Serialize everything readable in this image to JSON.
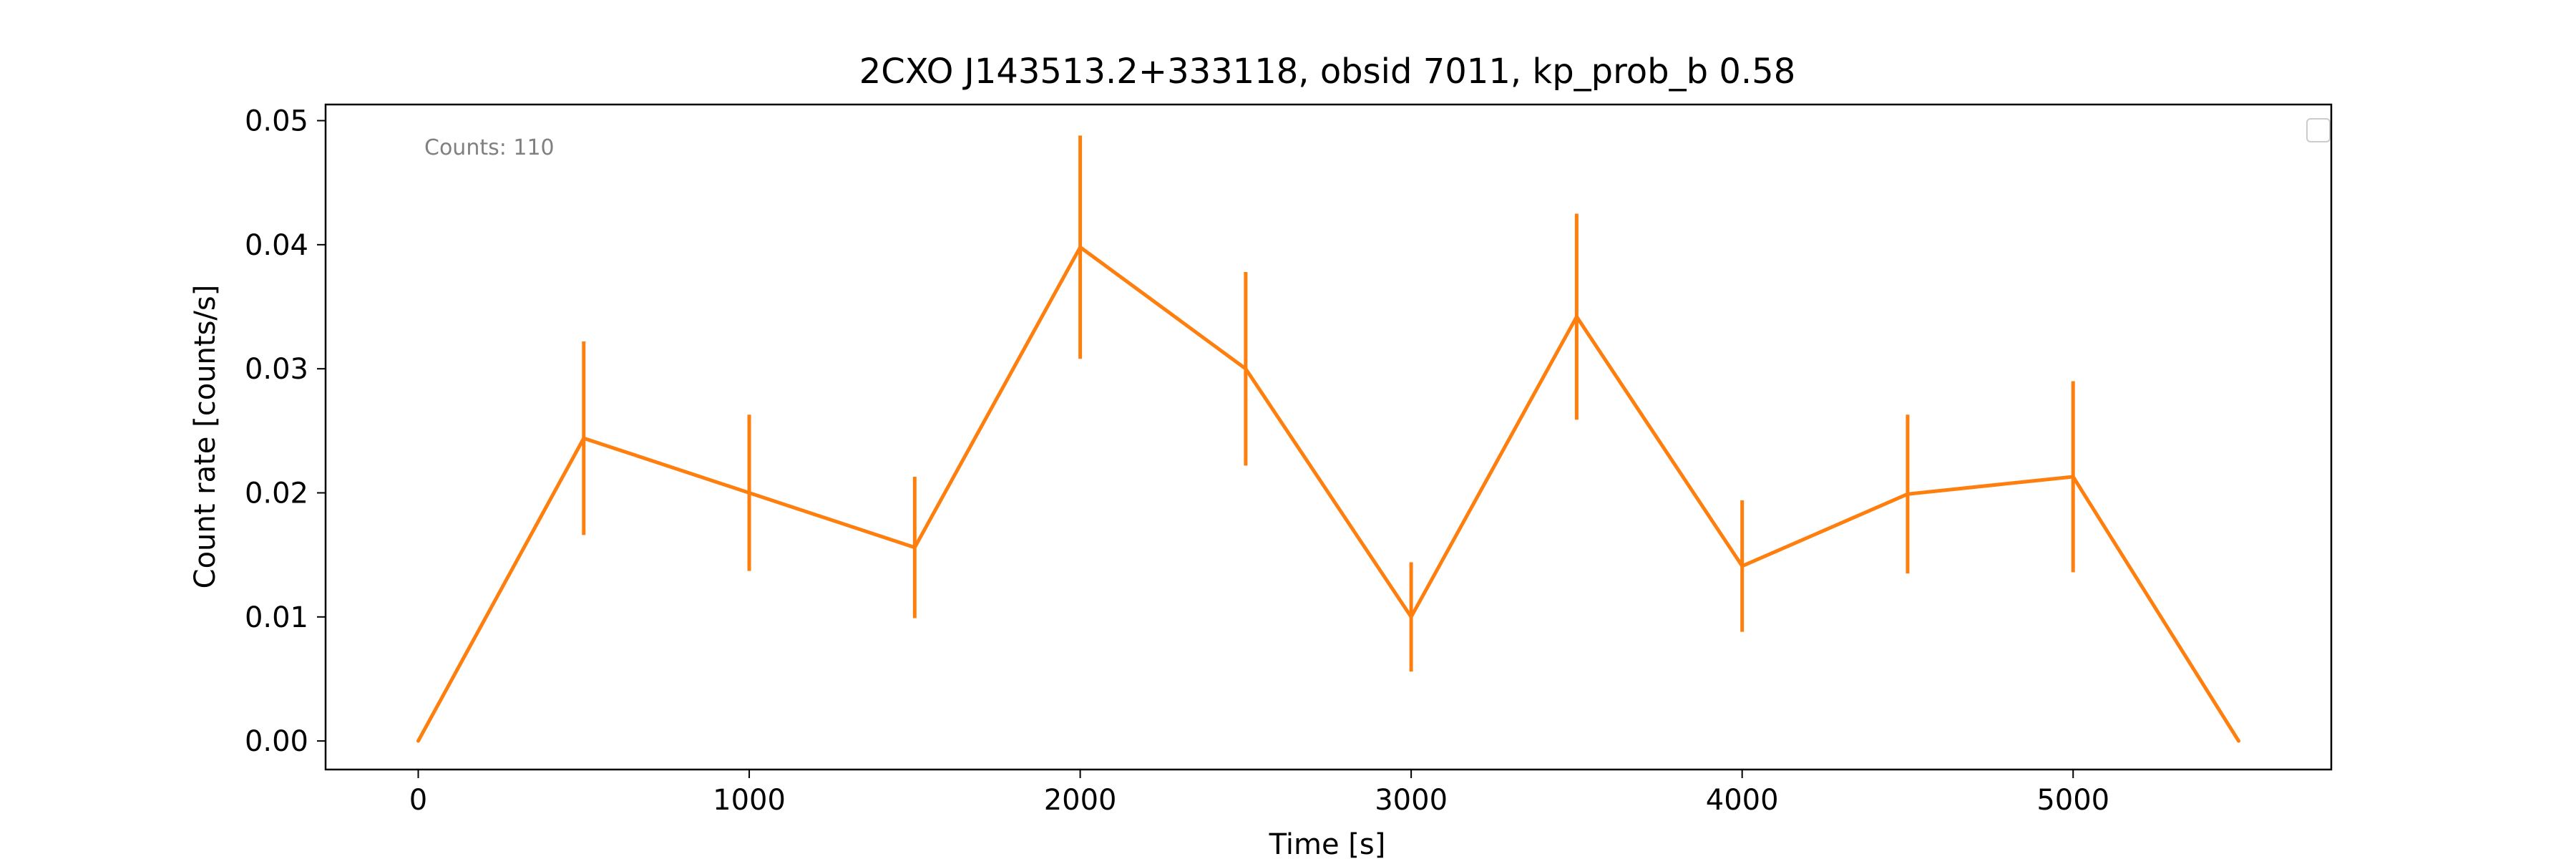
{
  "chart_data": {
    "type": "line",
    "title": "2CXO J143513.2+333118, obsid 7011, kp_prob_b 0.58",
    "xlabel": "Time [s]",
    "ylabel": "Count rate [counts/s]",
    "xlim": [
      -280,
      5780
    ],
    "ylim": [
      -0.0023,
      0.0513
    ],
    "x_ticks": [
      0,
      1000,
      2000,
      3000,
      4000,
      5000
    ],
    "x_tick_labels": [
      "0",
      "1000",
      "2000",
      "3000",
      "4000",
      "5000"
    ],
    "y_ticks": [
      0.0,
      0.01,
      0.02,
      0.03,
      0.04,
      0.05
    ],
    "y_tick_labels": [
      "0.00",
      "0.01",
      "0.02",
      "0.03",
      "0.04",
      "0.05"
    ],
    "grid": false,
    "legend": "top-right (empty)",
    "annotation": "Counts: 110",
    "series": [
      {
        "color": "#ff7f0e",
        "x": [
          0,
          500,
          1000,
          1500,
          2000,
          2500,
          3000,
          3500,
          4000,
          4500,
          5000,
          5500
        ],
        "y": [
          0.0,
          0.0244,
          0.02,
          0.0156,
          0.0398,
          0.03,
          0.01,
          0.0342,
          0.0141,
          0.0199,
          0.0213,
          0.0
        ],
        "yerr": [
          0,
          0.0078,
          0.0063,
          0.0057,
          0.009,
          0.0078,
          0.0044,
          0.0083,
          0.0053,
          0.0064,
          0.0077,
          0
        ]
      }
    ]
  }
}
